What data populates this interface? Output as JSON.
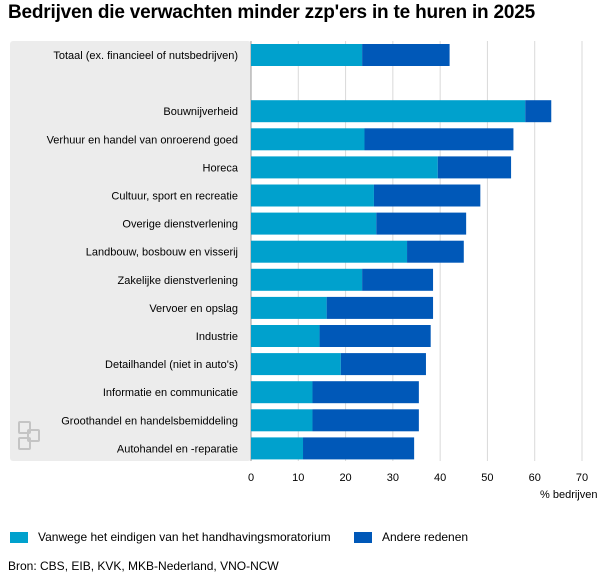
{
  "chart_data": {
    "type": "bar",
    "orientation": "horizontal",
    "stacked": true,
    "title": "Bedrijven die verwachten minder zzp'ers in te huren in 2025",
    "xlabel": "% bedrijven",
    "xlim": [
      0,
      70
    ],
    "xticks": [
      0,
      10,
      20,
      30,
      40,
      50,
      60,
      70
    ],
    "grid": true,
    "legend_position": "bottom",
    "categories": [
      "Totaal (ex. financieel of nutsbedrijven)",
      "",
      "Bouwnijverheid",
      "Verhuur en handel van onroerend goed",
      "Horeca",
      "Cultuur, sport en recreatie",
      "Overige dienstverlening",
      "Landbouw, bosbouw en visserij",
      "Zakelijke dienstverlening",
      "Vervoer en opslag",
      "Industrie",
      "Detailhandel (niet in auto's)",
      "Informatie en communicatie",
      "Groothandel en handelsbemiddeling",
      "Autohandel en -reparatie"
    ],
    "series": [
      {
        "name": "Vanwege het eindigen van het handhavingsmoratorium",
        "color": "#00a1cd",
        "values": [
          23.5,
          null,
          58,
          24,
          39.5,
          26,
          26.5,
          33,
          23.5,
          16,
          14.5,
          19,
          13,
          13,
          11
        ]
      },
      {
        "name": "Andere redenen",
        "color": "#0058b8",
        "values": [
          18.5,
          null,
          5.5,
          31.5,
          15.5,
          22.5,
          19,
          12,
          15,
          22.5,
          23.5,
          18,
          22.5,
          22.5,
          23.5
        ]
      }
    ]
  },
  "source": "Bron: CBS, EIB, KVK, MKB-Nederland, VNO-NCW"
}
